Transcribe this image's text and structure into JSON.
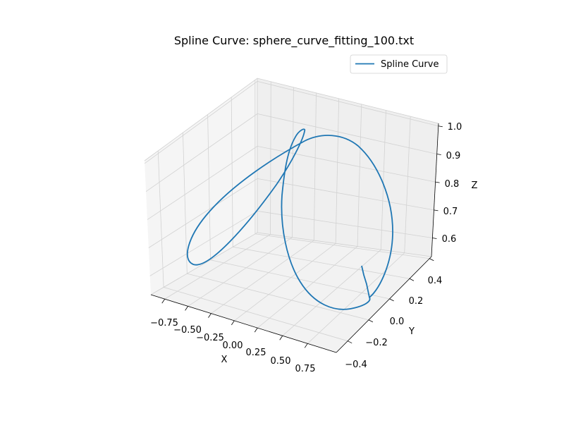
{
  "chart_data": {
    "type": "line",
    "projection": "3d",
    "title": "Spline Curve: sphere_curve_fitting_100.txt",
    "xlabel": "X",
    "ylabel": "Y",
    "zlabel": "Z",
    "xticks": [
      "−0.75",
      "−0.50",
      "−0.25",
      "0.00",
      "0.25",
      "0.50",
      "0.75"
    ],
    "yticks": [
      "−0.4",
      "−0.2",
      "0.0",
      "0.2",
      "0.4"
    ],
    "zticks": [
      "0.6",
      "0.7",
      "0.8",
      "0.9",
      "1.0"
    ],
    "xlim": [
      -0.9,
      0.9
    ],
    "ylim": [
      -0.45,
      0.45
    ],
    "zlim": [
      0.53,
      1.0
    ],
    "grid": true,
    "legend": {
      "position": "top-right",
      "entries": [
        "Spline Curve"
      ]
    },
    "series": [
      {
        "name": "Spline Curve",
        "color": "#1f77b4"
      }
    ]
  }
}
